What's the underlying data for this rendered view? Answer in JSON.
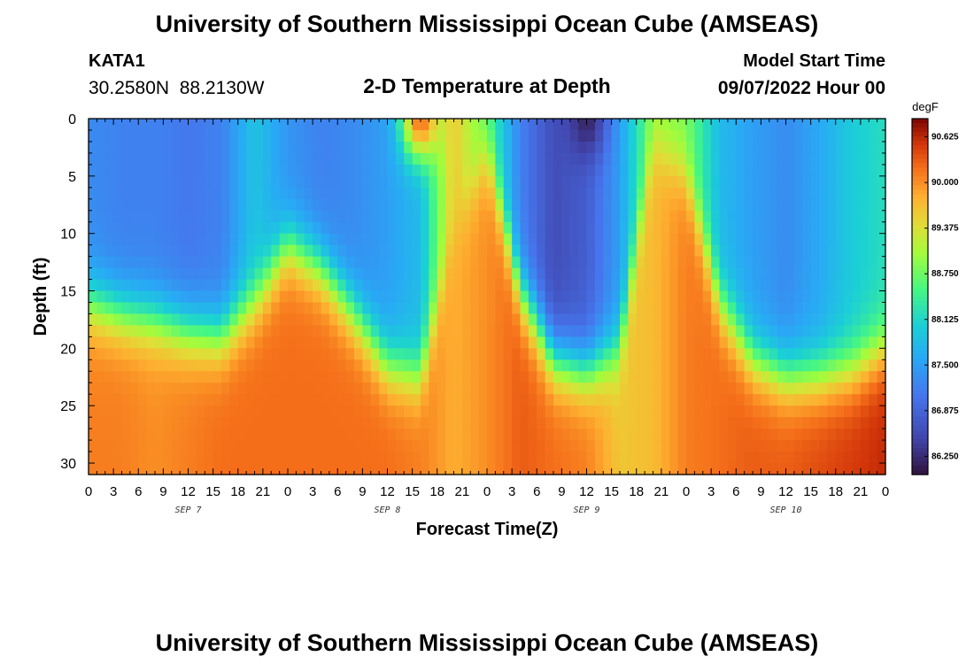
{
  "header": {
    "title": "University of Southern Mississippi Ocean Cube (AMSEAS)",
    "station": "KATA1",
    "coords": "30.2580N  88.2130W",
    "subtitle": "2-D Temperature at Depth",
    "model_start_label": "Model Start Time",
    "model_start_value": "09/07/2022 Hour 00"
  },
  "footer": {
    "title": "University of Southern Mississippi Ocean Cube (AMSEAS)"
  },
  "chart_data": {
    "type": "heatmap",
    "title": "2-D Temperature at Depth",
    "xlabel": "Forecast Time(Z)",
    "ylabel": "Depth (ft)",
    "xlim": [
      0,
      96
    ],
    "ylim": [
      0,
      31
    ],
    "x_ticks": [
      0,
      3,
      6,
      9,
      12,
      15,
      18,
      21,
      24,
      27,
      30,
      33,
      36,
      39,
      42,
      45,
      48,
      51,
      54,
      57,
      60,
      63,
      66,
      69,
      72,
      75,
      78,
      81,
      84,
      87,
      90,
      93,
      96
    ],
    "x_tick_labels": [
      "0",
      "3",
      "6",
      "9",
      "12",
      "15",
      "18",
      "21",
      "0",
      "3",
      "6",
      "9",
      "12",
      "15",
      "18",
      "21",
      "0",
      "3",
      "6",
      "9",
      "12",
      "15",
      "18",
      "21",
      "0",
      "3",
      "6",
      "9",
      "12",
      "15",
      "18",
      "21",
      "0"
    ],
    "day_labels": [
      {
        "x": 12,
        "label": "SEP 7"
      },
      {
        "x": 36,
        "label": "SEP 8"
      },
      {
        "x": 60,
        "label": "SEP 9"
      },
      {
        "x": 84,
        "label": "SEP 10"
      }
    ],
    "y_ticks": [
      0,
      5,
      10,
      15,
      20,
      25,
      30
    ],
    "colorbar": {
      "unit": "degF",
      "min": 86.0,
      "max": 90.875,
      "ticks": [
        86.25,
        86.875,
        87.5,
        88.125,
        88.75,
        89.375,
        90.0,
        90.625
      ],
      "tick_labels": [
        "86.250",
        "86.875",
        "87.500",
        "88.125",
        "88.750",
        "89.375",
        "90.000",
        "90.625"
      ]
    },
    "interface_depth_ft": {
      "hours": [
        0,
        4,
        8,
        12,
        16,
        20,
        24,
        28,
        32,
        36,
        40,
        44,
        48,
        52,
        56,
        60,
        64,
        68,
        72,
        76,
        80,
        84,
        88,
        92,
        96
      ],
      "depths": [
        16,
        17,
        17.5,
        18.5,
        19,
        16,
        11,
        13,
        17,
        21.5,
        22.5,
        10,
        3,
        15,
        21,
        22,
        20,
        2,
        5,
        16,
        21,
        22.5,
        22.5,
        22,
        20
      ]
    },
    "upper_temp_degF": [
      87.3,
      87.2,
      87.2,
      87.1,
      87.2,
      87.9,
      87.4,
      87.2,
      87.3,
      87.5,
      87.8,
      89.6,
      88.6,
      87.2,
      86.6,
      86.8,
      87.5,
      88.9,
      88.8,
      87.8,
      87.5,
      87.3,
      87.6,
      88.0,
      88.2
    ],
    "lower_temp_degF": [
      90.1,
      90.1,
      90.0,
      90.1,
      90.2,
      90.2,
      90.2,
      90.2,
      90.2,
      90.2,
      90.1,
      89.8,
      90.0,
      90.3,
      90.2,
      90.1,
      89.6,
      89.7,
      90.1,
      90.2,
      90.3,
      90.3,
      90.4,
      90.5,
      90.6
    ],
    "features": [
      {
        "hour": 40,
        "depth_ft": 1,
        "temp_degF": 90.2,
        "note": "warm surface patch near 18Z Sep 8"
      },
      {
        "hour": 60,
        "depth_ft": 1,
        "temp_degF": 86.2,
        "note": "cold surface patch near 12Z Sep 9"
      }
    ]
  }
}
